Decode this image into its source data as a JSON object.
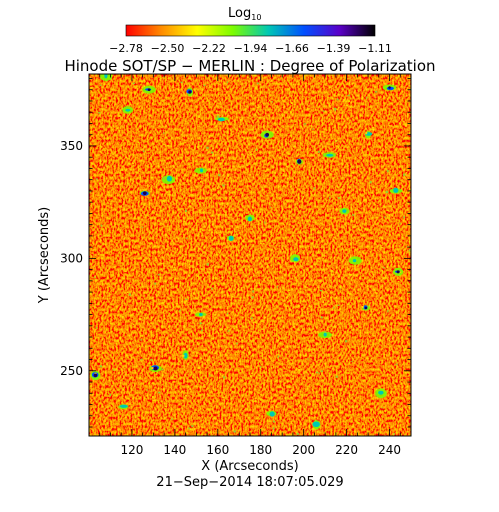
{
  "colorbar": {
    "label_main": "Log",
    "label_sub": "10",
    "tick_labels": [
      "−2.78",
      "−2.50",
      "−2.22",
      "−1.94",
      "−1.66",
      "−1.39",
      "−1.11"
    ],
    "range": [
      -2.78,
      -1.11
    ],
    "colormap": [
      "#ff0000",
      "#ff8c00",
      "#ffff00",
      "#7cfc00",
      "#00c8b4",
      "#0050ff",
      "#5a00c8",
      "#000000"
    ]
  },
  "chart_data": {
    "type": "heatmap",
    "title": "Hinode SOT/SP − MERLIN : Degree of Polarization",
    "xlabel": "X (Arcseconds)",
    "ylabel": "Y (Arcseconds)",
    "xlim": [
      100,
      250
    ],
    "ylim": [
      221,
      382
    ],
    "x_ticks": [
      120,
      140,
      160,
      180,
      200,
      220,
      240
    ],
    "y_ticks": [
      250,
      300,
      350
    ],
    "value_range": [
      -2.78,
      -1.11
    ],
    "dominant_colors": [
      "#ff3c00",
      "#ff8c00",
      "#ffd700"
    ],
    "grid": false
  },
  "footer": {
    "timestamp": "21−Sep−2014 18:07:05.029"
  }
}
